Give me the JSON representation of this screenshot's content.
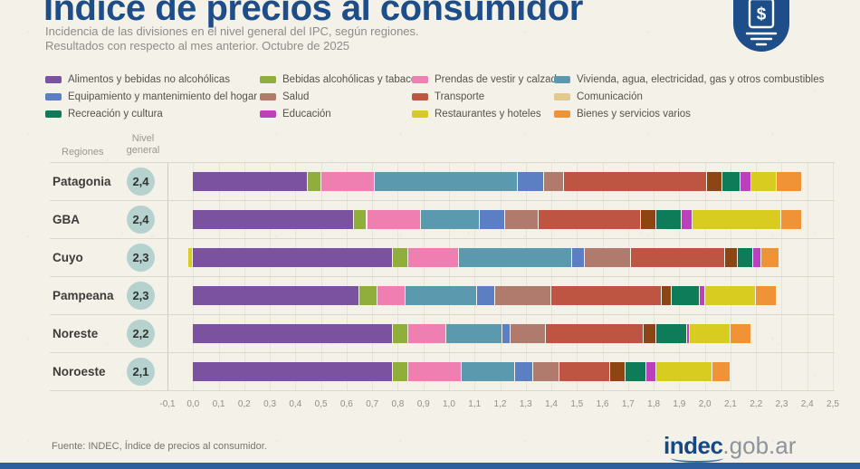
{
  "header": {
    "title": "Índice de precios al consumidor",
    "subtitle_line1": "Incidencia de las divisiones en el nivel general del IPC, según regiones.",
    "subtitle_line2": "Resultados con respecto al mes anterior. Octubre de 2025",
    "brand_color": "#1d4e89",
    "badge_symbol": "$"
  },
  "chart_data": {
    "type": "bar",
    "orientation": "horizontal-stacked",
    "title": "Índice de precios al consumidor",
    "subtitle": "Incidencia de las divisiones en el nivel general del IPC, según regiones. Resultados con respecto al mes anterior. Octubre de 2025",
    "column_headers": {
      "regions": "Regiones",
      "level_line1": "Nivel",
      "level_line2": "general"
    },
    "x_axis": {
      "min": -0.1,
      "max": 2.5,
      "step": 0.1,
      "grid": true,
      "tick_labels": [
        "-0,1",
        "0,0",
        "0,1",
        "0,2",
        "0,3",
        "0,4",
        "0,5",
        "0,6",
        "0,7",
        "0,8",
        "0,9",
        "1,0",
        "1,1",
        "1,2",
        "1,3",
        "1,4",
        "1,5",
        "1,6",
        "1,7",
        "1,8",
        "1,9",
        "2,0",
        "2,1",
        "2,2",
        "2,3",
        "2,4",
        "2,5"
      ]
    },
    "divisions": [
      {
        "name": "Alimentos y bebidas no alcohólicas",
        "color": "#7b52a0"
      },
      {
        "name": "Bebidas alcohólicas y tabaco",
        "color": "#8fae3b"
      },
      {
        "name": "Prendas de vestir y calzado",
        "color": "#ef7fb1"
      },
      {
        "name": "Vivienda, agua, electricidad, gas y otros combustibles",
        "color": "#5b9aae"
      },
      {
        "name": "Equipamiento y mantenimiento del hogar",
        "color": "#5c7fc4"
      },
      {
        "name": "Salud",
        "color": "#b07a6c"
      },
      {
        "name": "Transporte",
        "color": "#be5542"
      },
      {
        "name": "Comunicación",
        "color": "#8e4514",
        "legend_color": "#e3c98f"
      },
      {
        "name": "Recreación y cultura",
        "color": "#0e7c59"
      },
      {
        "name": "Educación",
        "color": "#bc3fbe"
      },
      {
        "name": "Restaurantes y hoteles",
        "color": "#d8cc20"
      },
      {
        "name": "Bienes y servicios varios",
        "color": "#ef9336"
      }
    ],
    "legend_columns": [
      [
        0,
        4,
        8
      ],
      [
        1,
        5,
        9
      ],
      [
        2,
        6,
        10
      ],
      [
        3,
        7,
        11
      ]
    ],
    "regions": [
      {
        "name": "Patagonia",
        "level": "2,4",
        "values": [
          0.45,
          0.05,
          0.21,
          0.56,
          0.1,
          0.08,
          0.56,
          0.06,
          0.07,
          0.04,
          0.1,
          0.1
        ]
      },
      {
        "name": "GBA",
        "level": "2,4",
        "values": [
          0.63,
          0.05,
          0.21,
          0.23,
          0.1,
          0.13,
          0.4,
          0.06,
          0.1,
          0.04,
          0.35,
          0.08
        ]
      },
      {
        "name": "Cuyo",
        "level": "2,3",
        "values": [
          0.78,
          0.06,
          0.2,
          0.44,
          0.05,
          0.18,
          0.37,
          0.05,
          0.06,
          0.03,
          -0.02,
          0.07
        ]
      },
      {
        "name": "Pampeana",
        "level": "2,3",
        "values": [
          0.65,
          0.07,
          0.11,
          0.28,
          0.07,
          0.22,
          0.43,
          0.04,
          0.11,
          0.02,
          0.2,
          0.08
        ]
      },
      {
        "name": "Noreste",
        "level": "2,2",
        "values": [
          0.78,
          0.06,
          0.15,
          0.22,
          0.03,
          0.14,
          0.38,
          0.05,
          0.12,
          0.01,
          0.16,
          0.08
        ]
      },
      {
        "name": "Noroeste",
        "level": "2,1",
        "values": [
          0.78,
          0.06,
          0.21,
          0.21,
          0.07,
          0.1,
          0.2,
          0.06,
          0.08,
          0.04,
          0.22,
          0.07
        ]
      }
    ]
  },
  "footer": {
    "source": "Fuente: INDEC, Índice de precios al consumidor.",
    "logo_primary": "indec",
    "logo_secondary": ".gob.ar"
  }
}
